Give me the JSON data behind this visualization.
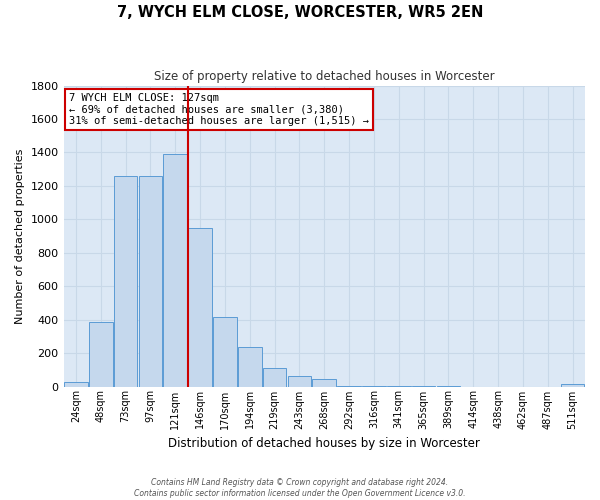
{
  "title": "7, WYCH ELM CLOSE, WORCESTER, WR5 2EN",
  "subtitle": "Size of property relative to detached houses in Worcester",
  "xlabel": "Distribution of detached houses by size in Worcester",
  "ylabel": "Number of detached properties",
  "bar_labels": [
    "24sqm",
    "48sqm",
    "73sqm",
    "97sqm",
    "121sqm",
    "146sqm",
    "170sqm",
    "194sqm",
    "219sqm",
    "243sqm",
    "268sqm",
    "292sqm",
    "316sqm",
    "341sqm",
    "365sqm",
    "389sqm",
    "414sqm",
    "438sqm",
    "462sqm",
    "487sqm",
    "511sqm"
  ],
  "bar_values": [
    25,
    385,
    1260,
    1260,
    1390,
    950,
    415,
    235,
    110,
    65,
    45,
    5,
    5,
    5,
    5,
    5,
    0,
    0,
    0,
    0,
    15
  ],
  "bar_color": "#c5d8ed",
  "bar_edge_color": "#5b9bd5",
  "vline_color": "#cc0000",
  "ylim": [
    0,
    1800
  ],
  "yticks": [
    0,
    200,
    400,
    600,
    800,
    1000,
    1200,
    1400,
    1600,
    1800
  ],
  "annotation_title": "7 WYCH ELM CLOSE: 127sqm",
  "annotation_line1": "← 69% of detached houses are smaller (3,380)",
  "annotation_line2": "31% of semi-detached houses are larger (1,515) →",
  "annotation_box_color": "#cc0000",
  "grid_color": "#c8d8e8",
  "bg_color": "#dce8f5",
  "footer_line1": "Contains HM Land Registry data © Crown copyright and database right 2024.",
  "footer_line2": "Contains public sector information licensed under the Open Government Licence v3.0."
}
